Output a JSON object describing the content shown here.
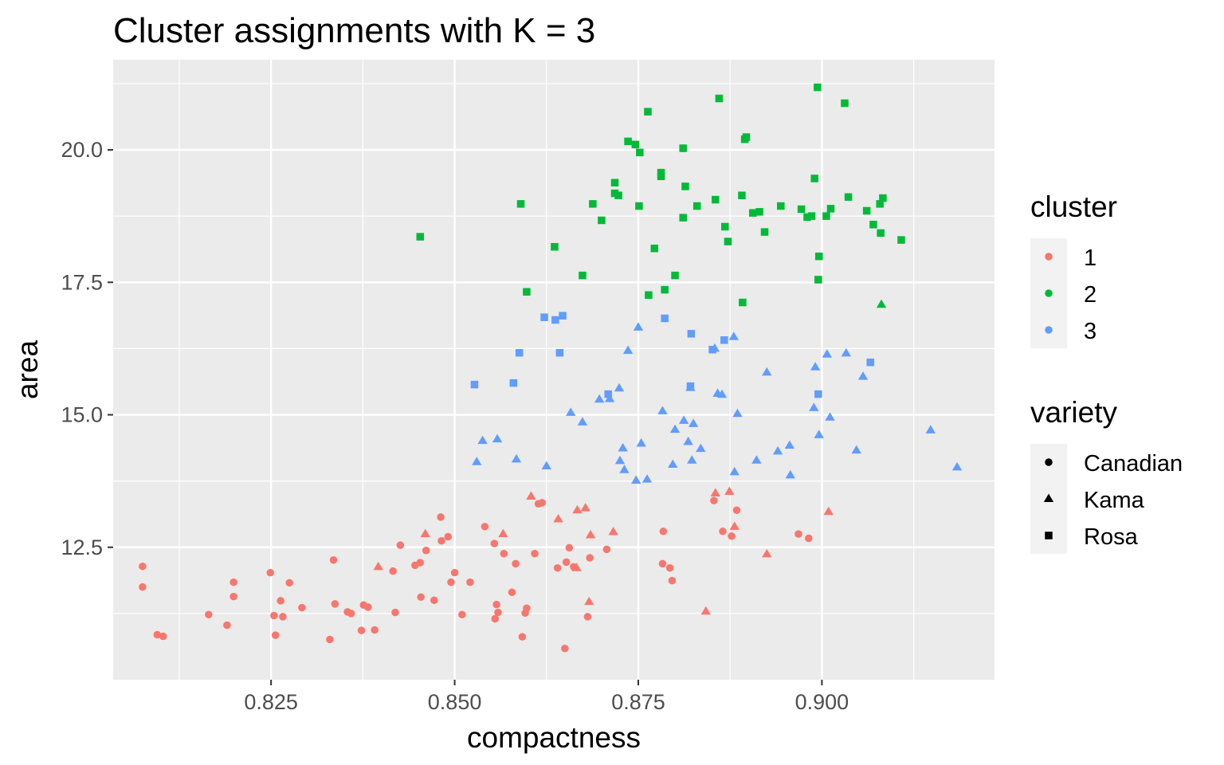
{
  "chart_data": {
    "type": "scatter",
    "title": "Cluster assignments with K = 3",
    "xlabel": "compactness",
    "ylabel": "area",
    "xlim": [
      0.8035,
      0.9235
    ],
    "ylim": [
      10.0,
      21.7
    ],
    "x_ticks": [
      0.825,
      0.85,
      0.875,
      0.9
    ],
    "x_tick_labels": [
      "0.825",
      "0.850",
      "0.875",
      "0.900"
    ],
    "y_ticks": [
      12.5,
      15.0,
      17.5,
      20.0
    ],
    "y_tick_labels": [
      "12.5",
      "15.0",
      "17.5",
      "20.0"
    ],
    "grid": true,
    "legend_position": "right",
    "color_legend": {
      "title": "cluster",
      "items": [
        {
          "label": "1",
          "color": "#F8766D"
        },
        {
          "label": "2",
          "color": "#00BA38"
        },
        {
          "label": "3",
          "color": "#619CFF"
        }
      ]
    },
    "shape_legend": {
      "title": "variety",
      "items": [
        {
          "label": "Canadian",
          "shape": "circle"
        },
        {
          "label": "Kama",
          "shape": "triangle"
        },
        {
          "label": "Rosa",
          "shape": "square"
        }
      ]
    },
    "series": [
      {
        "cluster": "1",
        "variety": "Canadian",
        "points": [
          [
            0.8075,
            12.14
          ],
          [
            0.8075,
            11.75
          ],
          [
            0.8095,
            10.85
          ],
          [
            0.8103,
            10.82
          ],
          [
            0.8165,
            11.23
          ],
          [
            0.819,
            11.03
          ],
          [
            0.8199,
            11.84
          ],
          [
            0.8199,
            11.57
          ],
          [
            0.8249,
            12.02
          ],
          [
            0.8254,
            11.21
          ],
          [
            0.8256,
            10.84
          ],
          [
            0.8263,
            11.49
          ],
          [
            0.8266,
            11.19
          ],
          [
            0.8275,
            11.83
          ],
          [
            0.8292,
            11.36
          ],
          [
            0.833,
            10.76
          ],
          [
            0.8335,
            12.26
          ],
          [
            0.8337,
            11.43
          ],
          [
            0.8354,
            11.28
          ],
          [
            0.8359,
            11.25
          ],
          [
            0.8373,
            10.93
          ],
          [
            0.8376,
            11.41
          ],
          [
            0.8382,
            11.37
          ],
          [
            0.8391,
            10.94
          ],
          [
            0.8416,
            12.05
          ],
          [
            0.8419,
            11.27
          ],
          [
            0.8426,
            12.54
          ],
          [
            0.8446,
            12.16
          ],
          [
            0.8453,
            12.21
          ],
          [
            0.8454,
            11.56
          ],
          [
            0.8461,
            12.44
          ],
          [
            0.8472,
            11.5
          ],
          [
            0.8481,
            13.07
          ],
          [
            0.8482,
            12.62
          ],
          [
            0.8491,
            12.7
          ],
          [
            0.8495,
            11.84
          ],
          [
            0.85,
            12.02
          ],
          [
            0.851,
            11.23
          ],
          [
            0.8521,
            11.84
          ],
          [
            0.8541,
            12.89
          ],
          [
            0.8554,
            12.57
          ],
          [
            0.8555,
            11.15
          ],
          [
            0.8557,
            11.42
          ],
          [
            0.8559,
            11.27
          ],
          [
            0.8567,
            12.38
          ],
          [
            0.8578,
            11.65
          ],
          [
            0.8583,
            12.19
          ],
          [
            0.8592,
            10.81
          ],
          [
            0.8596,
            11.26
          ],
          [
            0.8598,
            11.35
          ],
          [
            0.8609,
            12.38
          ],
          [
            0.8614,
            13.32
          ],
          [
            0.8619,
            13.34
          ],
          [
            0.864,
            12.11
          ],
          [
            0.8652,
            12.22
          ],
          [
            0.8656,
            12.49
          ],
          [
            0.8662,
            12.13
          ],
          [
            0.865,
            10.59
          ],
          [
            0.8681,
            11.19
          ],
          [
            0.8684,
            12.3
          ],
          [
            0.8707,
            12.46
          ],
          [
            0.8784,
            12.8
          ],
          [
            0.8783,
            12.19
          ],
          [
            0.8793,
            12.11
          ],
          [
            0.8796,
            11.87
          ],
          [
            0.8853,
            13.38
          ],
          [
            0.8865,
            12.8
          ],
          [
            0.8877,
            12.71
          ],
          [
            0.8884,
            13.2
          ],
          [
            0.8968,
            12.75
          ],
          [
            0.8982,
            12.67
          ]
        ]
      },
      {
        "cluster": "1",
        "variety": "Kama",
        "points": [
          [
            0.8396,
            12.13
          ],
          [
            0.846,
            12.75
          ],
          [
            0.8566,
            12.75
          ],
          [
            0.8604,
            13.46
          ],
          [
            0.8641,
            13.03
          ],
          [
            0.8667,
            13.2
          ],
          [
            0.8666,
            12.11
          ],
          [
            0.8678,
            13.24
          ],
          [
            0.8683,
            11.47
          ],
          [
            0.8685,
            12.73
          ],
          [
            0.8716,
            12.79
          ],
          [
            0.8842,
            11.29
          ],
          [
            0.8855,
            13.52
          ],
          [
            0.8874,
            13.55
          ],
          [
            0.8881,
            12.89
          ],
          [
            0.8925,
            12.37
          ],
          [
            0.9009,
            13.17
          ]
        ]
      },
      {
        "cluster": "2",
        "variety": "Rosa",
        "points": [
          [
            0.8453,
            18.36
          ],
          [
            0.859,
            18.98
          ],
          [
            0.8598,
            17.32
          ],
          [
            0.8636,
            18.17
          ],
          [
            0.8674,
            17.63
          ],
          [
            0.8688,
            18.98
          ],
          [
            0.87,
            18.67
          ],
          [
            0.8718,
            19.38
          ],
          [
            0.8718,
            19.18
          ],
          [
            0.8723,
            19.14
          ],
          [
            0.8736,
            20.16
          ],
          [
            0.8746,
            20.1
          ],
          [
            0.8752,
            19.95
          ],
          [
            0.8751,
            18.94
          ],
          [
            0.8763,
            20.72
          ],
          [
            0.8764,
            17.26
          ],
          [
            0.8772,
            18.14
          ],
          [
            0.8781,
            19.57
          ],
          [
            0.8781,
            19.5
          ],
          [
            0.8786,
            17.36
          ],
          [
            0.88,
            17.63
          ],
          [
            0.8811,
            20.03
          ],
          [
            0.8811,
            18.72
          ],
          [
            0.8814,
            19.31
          ],
          [
            0.883,
            18.94
          ],
          [
            0.8855,
            19.06
          ],
          [
            0.886,
            20.97
          ],
          [
            0.8868,
            18.55
          ],
          [
            0.8872,
            18.27
          ],
          [
            0.8891,
            19.14
          ],
          [
            0.8892,
            17.12
          ],
          [
            0.8895,
            20.2
          ],
          [
            0.8897,
            20.24
          ],
          [
            0.8906,
            18.81
          ],
          [
            0.8915,
            18.83
          ],
          [
            0.8922,
            18.45
          ],
          [
            0.8944,
            18.94
          ],
          [
            0.8972,
            18.88
          ],
          [
            0.898,
            18.73
          ],
          [
            0.8986,
            18.75
          ],
          [
            0.899,
            19.46
          ],
          [
            0.8994,
            21.18
          ],
          [
            0.8995,
            17.55
          ],
          [
            0.8996,
            17.99
          ],
          [
            0.9006,
            18.75
          ],
          [
            0.9012,
            18.89
          ],
          [
            0.9031,
            20.88
          ],
          [
            0.9036,
            19.11
          ],
          [
            0.9061,
            18.85
          ],
          [
            0.907,
            18.59
          ],
          [
            0.9079,
            18.98
          ],
          [
            0.908,
            18.43
          ],
          [
            0.9083,
            19.09
          ],
          [
            0.9108,
            18.3
          ]
        ]
      },
      {
        "cluster": "2",
        "variety": "Kama",
        "points": [
          [
            0.9081,
            17.08
          ]
        ]
      },
      {
        "cluster": "3",
        "variety": "Rosa",
        "points": [
          [
            0.8527,
            15.57
          ],
          [
            0.858,
            15.6
          ],
          [
            0.8588,
            16.17
          ],
          [
            0.8622,
            16.84
          ],
          [
            0.8637,
            16.79
          ],
          [
            0.8643,
            16.17
          ],
          [
            0.8647,
            16.87
          ],
          [
            0.8709,
            15.39
          ],
          [
            0.8786,
            16.82
          ],
          [
            0.8821,
            15.54
          ],
          [
            0.8822,
            16.53
          ],
          [
            0.8851,
            16.23
          ],
          [
            0.8867,
            16.41
          ],
          [
            0.8995,
            15.39
          ],
          [
            0.9066,
            15.99
          ]
        ]
      },
      {
        "cluster": "3",
        "variety": "Kama",
        "points": [
          [
            0.853,
            14.11
          ],
          [
            0.8538,
            14.51
          ],
          [
            0.8558,
            14.54
          ],
          [
            0.8584,
            14.16
          ],
          [
            0.8625,
            14.03
          ],
          [
            0.8658,
            15.04
          ],
          [
            0.8674,
            14.86
          ],
          [
            0.8697,
            15.29
          ],
          [
            0.8711,
            15.3
          ],
          [
            0.8724,
            15.5
          ],
          [
            0.8725,
            14.13
          ],
          [
            0.8729,
            14.37
          ],
          [
            0.8731,
            13.96
          ],
          [
            0.8736,
            16.21
          ],
          [
            0.8747,
            13.76
          ],
          [
            0.875,
            16.65
          ],
          [
            0.8754,
            14.46
          ],
          [
            0.8762,
            13.78
          ],
          [
            0.8783,
            15.07
          ],
          [
            0.8797,
            14.06
          ],
          [
            0.88,
            14.72
          ],
          [
            0.8812,
            14.89
          ],
          [
            0.8818,
            14.49
          ],
          [
            0.8821,
            15.51
          ],
          [
            0.8823,
            14.14
          ],
          [
            0.8825,
            14.83
          ],
          [
            0.8835,
            14.36
          ],
          [
            0.8854,
            16.25
          ],
          [
            0.8858,
            15.4
          ],
          [
            0.8864,
            15.38
          ],
          [
            0.888,
            16.47
          ],
          [
            0.8881,
            13.92
          ],
          [
            0.8885,
            15.02
          ],
          [
            0.8911,
            14.14
          ],
          [
            0.8925,
            15.8
          ],
          [
            0.894,
            14.31
          ],
          [
            0.8956,
            14.42
          ],
          [
            0.8957,
            13.86
          ],
          [
            0.8989,
            15.13
          ],
          [
            0.8991,
            15.9
          ],
          [
            0.8996,
            14.62
          ],
          [
            0.9007,
            16.14
          ],
          [
            0.9033,
            16.16
          ],
          [
            0.9047,
            14.33
          ],
          [
            0.9056,
            15.72
          ],
          [
            0.9148,
            14.71
          ],
          [
            0.9184,
            14.01
          ],
          [
            0.9011,
            14.95
          ]
        ]
      }
    ]
  }
}
